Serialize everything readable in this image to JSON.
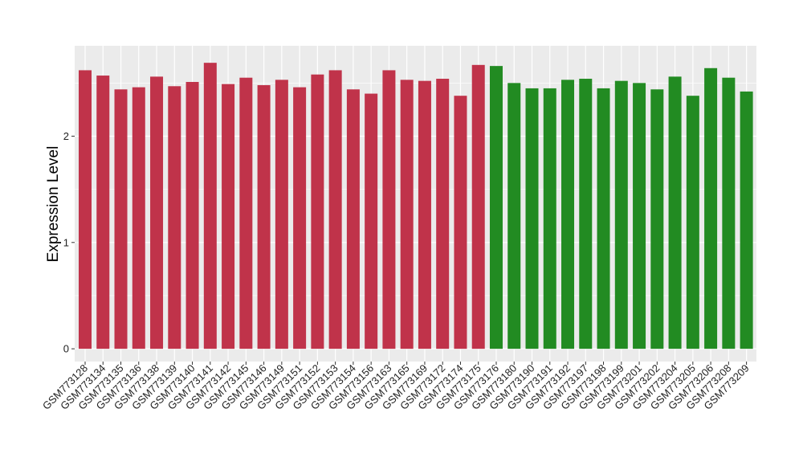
{
  "chart_data": {
    "type": "bar",
    "title": "",
    "xlabel": "",
    "ylabel": "Expression Level",
    "ylim": [
      -0.12,
      2.85
    ],
    "yticks": [
      0,
      1,
      2
    ],
    "grid": true,
    "legend": "none",
    "colors": {
      "group_a": "#C0334A",
      "group_b": "#228B22",
      "panel": "#EBEBEB",
      "gridline": "#FFFFFF"
    },
    "categories": [
      "GSM773128",
      "GSM773134",
      "GSM773135",
      "GSM773136",
      "GSM773138",
      "GSM773139",
      "GSM773140",
      "GSM773141",
      "GSM773142",
      "GSM773145",
      "GSM773146",
      "GSM773149",
      "GSM773151",
      "GSM773152",
      "GSM773153",
      "GSM773154",
      "GSM773156",
      "GSM773163",
      "GSM773165",
      "GSM773169",
      "GSM773172",
      "GSM773174",
      "GSM773175",
      "GSM773176",
      "GSM773180",
      "GSM773190",
      "GSM773191",
      "GSM773192",
      "GSM773197",
      "GSM773198",
      "GSM773199",
      "GSM773201",
      "GSM773202",
      "GSM773204",
      "GSM773205",
      "GSM773206",
      "GSM773208",
      "GSM773209"
    ],
    "values": [
      2.62,
      2.57,
      2.44,
      2.46,
      2.56,
      2.47,
      2.51,
      2.69,
      2.49,
      2.55,
      2.48,
      2.53,
      2.46,
      2.58,
      2.62,
      2.44,
      2.4,
      2.62,
      2.53,
      2.52,
      2.54,
      2.38,
      2.67,
      2.66,
      2.5,
      2.45,
      2.45,
      2.53,
      2.54,
      2.45,
      2.52,
      2.5,
      2.44,
      2.56,
      2.38,
      2.64,
      2.55,
      2.42
    ],
    "groups": [
      "a",
      "a",
      "a",
      "a",
      "a",
      "a",
      "a",
      "a",
      "a",
      "a",
      "a",
      "a",
      "a",
      "a",
      "a",
      "a",
      "a",
      "a",
      "a",
      "a",
      "a",
      "a",
      "a",
      "b",
      "b",
      "b",
      "b",
      "b",
      "b",
      "b",
      "b",
      "b",
      "b",
      "b",
      "b",
      "b",
      "b",
      "b"
    ]
  }
}
